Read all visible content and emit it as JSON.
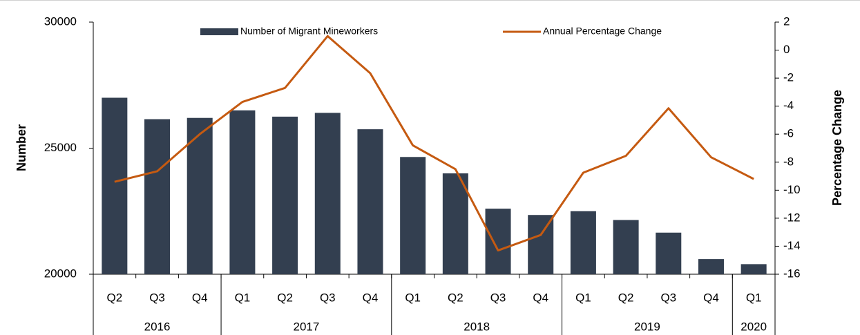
{
  "chart_data": {
    "type": "bar_line",
    "ylabel": "Number",
    "y2label": "Percentage Change",
    "groups": [
      {
        "label": "2016",
        "categories": [
          "Q2",
          "Q3",
          "Q4"
        ]
      },
      {
        "label": "2017",
        "categories": [
          "Q1",
          "Q2",
          "Q3",
          "Q4"
        ]
      },
      {
        "label": "2018",
        "categories": [
          "Q1",
          "Q2",
          "Q3",
          "Q4"
        ]
      },
      {
        "label": "2019",
        "categories": [
          "Q1",
          "Q2",
          "Q3",
          "Q4"
        ]
      },
      {
        "label": "2020",
        "categories": [
          "Q1"
        ]
      }
    ],
    "series": [
      {
        "name": "Number of Migrant Mineworkers",
        "type": "bar",
        "color": "#333f50",
        "values": [
          27000,
          26150,
          26200,
          26500,
          26250,
          26400,
          25750,
          24650,
          24000,
          22600,
          22350,
          22500,
          22150,
          21650,
          20600,
          20400
        ]
      },
      {
        "name": "Annual Percentage Change",
        "type": "line",
        "axis": "y2",
        "color": "#c55a11",
        "values": [
          -9.4,
          -8.65,
          -6.0,
          -3.7,
          -2.7,
          1.0,
          -1.65,
          -6.8,
          -8.5,
          -14.3,
          -13.2,
          -8.75,
          -7.55,
          -4.15,
          -7.65,
          -9.2
        ]
      }
    ],
    "ylim": [
      20000,
      30000
    ],
    "yticks": [
      20000,
      25000,
      30000
    ],
    "y2lim": [
      -16,
      2
    ],
    "y2ticks": [
      -16,
      -14,
      -12,
      -10,
      -8,
      -6,
      -4,
      -2,
      0,
      2
    ],
    "grid": false
  }
}
